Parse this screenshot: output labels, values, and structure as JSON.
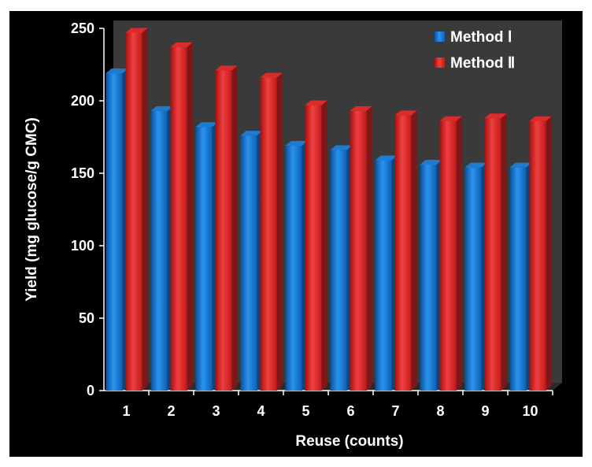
{
  "chart_data": {
    "type": "bar",
    "title": "",
    "xlabel": "Reuse (counts)",
    "ylabel": "Yield (mg glucose/g CMC)",
    "categories": [
      "1",
      "2",
      "3",
      "4",
      "5",
      "6",
      "7",
      "8",
      "9",
      "10"
    ],
    "series": [
      {
        "name": "Method Ⅰ",
        "color": "#1a7fd8",
        "values": [
          219,
          193,
          182,
          176,
          169,
          166,
          159,
          156,
          154,
          154
        ]
      },
      {
        "name": "Method Ⅱ",
        "color": "#e52a2a",
        "values": [
          247,
          237,
          221,
          216,
          197,
          193,
          190,
          186,
          188,
          186
        ]
      }
    ],
    "yticks": [
      0,
      50,
      100,
      150,
      200,
      250
    ],
    "ylim": [
      0,
      250
    ],
    "grid": false,
    "legend_position": "top-right",
    "style": "3d-bars",
    "background": "#000000",
    "plot_wall": "#3a3a3a",
    "text_color": "#ffffff"
  }
}
